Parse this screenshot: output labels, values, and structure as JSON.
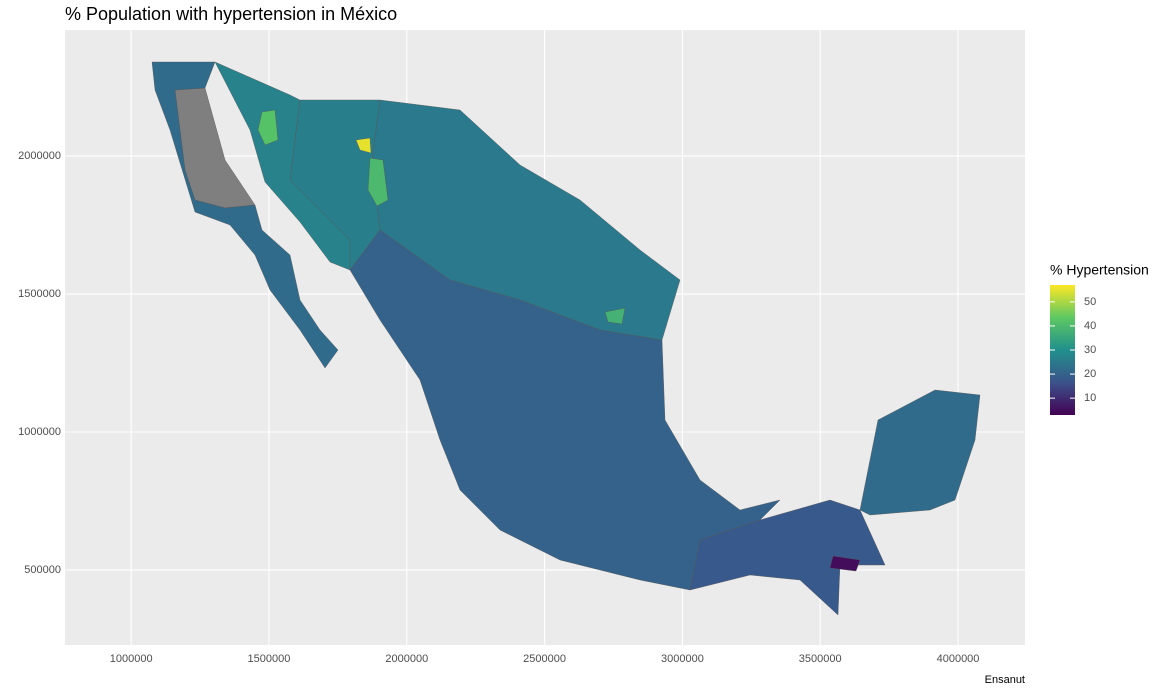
{
  "chart_data": {
    "type": "choropleth",
    "title": "% Population with hypertension in México",
    "caption": "Ensanut",
    "xlim": [
      760000,
      4243000
    ],
    "ylim": [
      228000,
      2457000
    ],
    "xticks": [
      1000000,
      1500000,
      2000000,
      2500000,
      3000000,
      3500000,
      4000000
    ],
    "yticks": [
      500000,
      1000000,
      1500000,
      2000000
    ],
    "grid": true,
    "legend": {
      "title": "% Hypertension",
      "position": "right",
      "limits": [
        3,
        57
      ],
      "ticks": [
        10,
        20,
        30,
        40,
        50
      ]
    },
    "na_color": "#7f7f7f",
    "region_values": [
      null,
      22,
      27,
      26,
      25,
      20,
      18,
      22,
      55,
      42,
      40,
      38,
      5
    ]
  }
}
